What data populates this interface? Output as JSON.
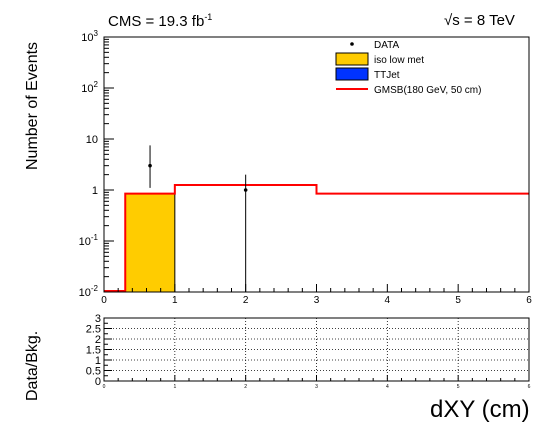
{
  "header": {
    "cms_label": "CMS = 19.3 fb",
    "cms_lumi_exp": "-1",
    "energy_sqrt": "√s",
    "energy_rest": " = 8 TeV"
  },
  "axes": {
    "upper_ylabel": "Number of Events",
    "lower_ylabel": "Data/Bkg.",
    "xlabel": "dXY (cm)"
  },
  "chart_data": [
    {
      "type": "bar",
      "panel": "upper",
      "scale": "log",
      "xlim": [
        0,
        6
      ],
      "ylim": [
        0.01,
        1000
      ],
      "xticks": [
        "0",
        "1",
        "2",
        "3",
        "4",
        "5",
        "6"
      ],
      "yticks": [
        {
          "base": "10",
          "exp": "-2",
          "value": 0.01
        },
        {
          "base": "10",
          "exp": "-1",
          "value": 0.1
        },
        {
          "base": "1",
          "exp": "",
          "value": 1
        },
        {
          "base": "10",
          "exp": "",
          "value": 10
        },
        {
          "base": "10",
          "exp": "2",
          "value": 100
        },
        {
          "base": "10",
          "exp": "3",
          "value": 1000
        }
      ],
      "xlabel": "dXY (cm)",
      "ylabel": "Number of Events",
      "legend_position": "top-right",
      "legend": [
        {
          "label": "DATA",
          "style": "marker"
        },
        {
          "label": "iso low met",
          "style": "fill",
          "color": "#ffcc00"
        },
        {
          "label": "TTJet",
          "style": "fill",
          "color": "#0033ff"
        },
        {
          "label": "GMSB(180 GeV, 50 cm)",
          "style": "line",
          "color": "#ff0000"
        }
      ],
      "series": [
        {
          "name": "iso low met",
          "type": "bar",
          "color": "#ffcc00",
          "bins": [
            {
              "x0": 0.3,
              "x1": 1.0,
              "value": 0.85
            }
          ]
        },
        {
          "name": "GMSB(180 GeV, 50 cm)",
          "type": "step",
          "color": "#ff0000",
          "bins": [
            {
              "x0": 0.0,
              "x1": 0.3,
              "value": 0.01
            },
            {
              "x0": 0.3,
              "x1": 1.0,
              "value": 0.85
            },
            {
              "x0": 1.0,
              "x1": 3.0,
              "value": 1.25
            },
            {
              "x0": 3.0,
              "x1": 6.0,
              "value": 0.85
            }
          ]
        },
        {
          "name": "DATA",
          "type": "points",
          "color": "#000000",
          "points": [
            {
              "x": 0.65,
              "y": 3,
              "err_low": 1.9,
              "err_high": 4.5
            },
            {
              "x": 2.0,
              "y": 1,
              "err_low": 1.0,
              "err_high": 1.0
            }
          ]
        }
      ],
      "grid": false
    },
    {
      "type": "line",
      "panel": "lower",
      "xlim": [
        0,
        6
      ],
      "ylim": [
        0,
        3
      ],
      "xticks": [
        "0",
        "1",
        "2",
        "3",
        "4",
        "5",
        "6"
      ],
      "yticks": [
        "0",
        "0.5",
        "1",
        "1.5",
        "2",
        "2.5",
        "3"
      ],
      "ylabel": "Data/Bkg.",
      "grid": true,
      "series": []
    }
  ]
}
